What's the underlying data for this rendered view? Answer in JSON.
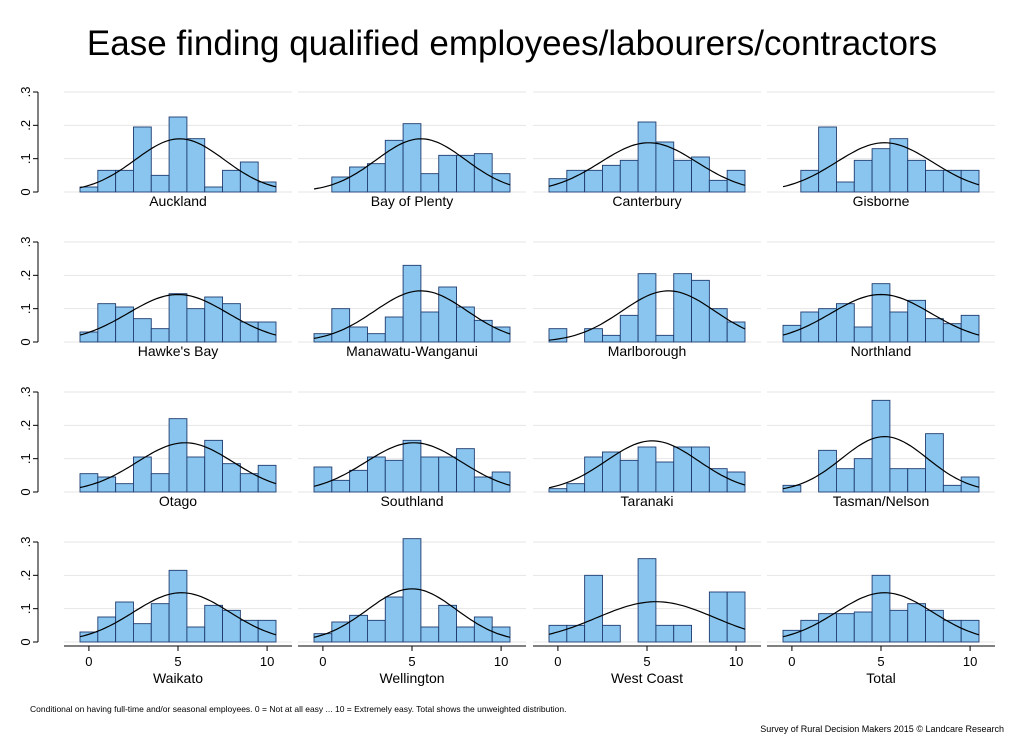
{
  "title": "Ease finding qualified employees/labourers/contractors",
  "note": "Conditional on having full-time and/or seasonal employees. 0 = Not at all easy ... 10 = Extremely easy. Total shows the unweighted distribution.",
  "credit": "Survey of Rural Decision Makers 2015 © Landcare Research",
  "chart_data": {
    "type": "bar",
    "subtype": "histogram-small-multiples",
    "grid": "horizontal",
    "y_ticks": [
      "0",
      ".1",
      ".2",
      ".3"
    ],
    "y_tick_values": [
      0,
      0.1,
      0.2,
      0.3
    ],
    "x_ticks": [
      "0",
      "5",
      "10"
    ],
    "x_tick_values": [
      0,
      5,
      10
    ],
    "ylim": [
      0,
      0.3
    ],
    "xlim": [
      -0.5,
      10.5
    ],
    "bins": [
      0,
      1,
      2,
      3,
      4,
      5,
      6,
      7,
      8,
      9,
      10
    ],
    "colors": {
      "bar_fill": "#89c5ee",
      "bar_edge": "#1f3c70",
      "curve": "#000000",
      "grid": "#e6e6e6"
    },
    "panels": [
      {
        "name": "Auckland",
        "values": [
          0.015,
          0.065,
          0.065,
          0.195,
          0.05,
          0.225,
          0.16,
          0.015,
          0.065,
          0.09,
          0.03
        ],
        "mean": 5.1,
        "sd": 2.5
      },
      {
        "name": "Bay of Plenty",
        "values": [
          0.0,
          0.045,
          0.075,
          0.085,
          0.155,
          0.205,
          0.055,
          0.11,
          0.11,
          0.115,
          0.055
        ],
        "mean": 5.5,
        "sd": 2.5
      },
      {
        "name": "Canterbury",
        "values": [
          0.04,
          0.065,
          0.065,
          0.08,
          0.095,
          0.21,
          0.15,
          0.095,
          0.105,
          0.035,
          0.065
        ],
        "mean": 5.1,
        "sd": 2.7
      },
      {
        "name": "Gisborne",
        "values": [
          0.0,
          0.065,
          0.195,
          0.03,
          0.095,
          0.13,
          0.16,
          0.095,
          0.065,
          0.065,
          0.065
        ],
        "mean": 5.2,
        "sd": 2.7
      },
      {
        "name": "Hawke's Bay",
        "values": [
          0.03,
          0.115,
          0.105,
          0.07,
          0.04,
          0.145,
          0.1,
          0.135,
          0.115,
          0.06,
          0.06
        ],
        "mean": 5.0,
        "sd": 2.8
      },
      {
        "name": "Manawatu-Wanganui",
        "values": [
          0.025,
          0.1,
          0.045,
          0.025,
          0.075,
          0.23,
          0.09,
          0.165,
          0.105,
          0.065,
          0.045
        ],
        "mean": 5.5,
        "sd": 2.6
      },
      {
        "name": "Marlborough",
        "values": [
          0.04,
          0.0,
          0.04,
          0.02,
          0.08,
          0.205,
          0.02,
          0.205,
          0.185,
          0.1,
          0.06
        ],
        "mean": 6.2,
        "sd": 2.6
      },
      {
        "name": "Northland",
        "values": [
          0.05,
          0.09,
          0.1,
          0.115,
          0.045,
          0.175,
          0.09,
          0.125,
          0.07,
          0.055,
          0.08
        ],
        "mean": 5.0,
        "sd": 2.8
      },
      {
        "name": "Otago",
        "values": [
          0.055,
          0.045,
          0.025,
          0.105,
          0.055,
          0.22,
          0.105,
          0.155,
          0.085,
          0.055,
          0.08
        ],
        "mean": 5.4,
        "sd": 2.7
      },
      {
        "name": "Southland",
        "values": [
          0.075,
          0.035,
          0.065,
          0.105,
          0.095,
          0.155,
          0.105,
          0.105,
          0.13,
          0.045,
          0.06
        ],
        "mean": 5.1,
        "sd": 2.7
      },
      {
        "name": "Taranaki",
        "values": [
          0.01,
          0.025,
          0.105,
          0.12,
          0.095,
          0.135,
          0.09,
          0.135,
          0.135,
          0.07,
          0.06
        ],
        "mean": 5.3,
        "sd": 2.6
      },
      {
        "name": "Tasman/Nelson",
        "values": [
          0.02,
          0.0,
          0.125,
          0.07,
          0.1,
          0.275,
          0.07,
          0.07,
          0.175,
          0.02,
          0.045
        ],
        "mean": 5.2,
        "sd": 2.4
      },
      {
        "name": "Waikato",
        "values": [
          0.03,
          0.075,
          0.12,
          0.055,
          0.115,
          0.215,
          0.045,
          0.11,
          0.095,
          0.065,
          0.065
        ],
        "mean": 5.2,
        "sd": 2.7
      },
      {
        "name": "Wellington",
        "values": [
          0.025,
          0.06,
          0.08,
          0.065,
          0.135,
          0.31,
          0.045,
          0.11,
          0.045,
          0.075,
          0.045
        ],
        "mean": 5.0,
        "sd": 2.5
      },
      {
        "name": "West Coast",
        "values": [
          0.05,
          0.05,
          0.2,
          0.05,
          0.0,
          0.25,
          0.05,
          0.05,
          0.0,
          0.15,
          0.15
        ],
        "mean": 5.5,
        "sd": 3.3
      },
      {
        "name": "Total",
        "values": [
          0.035,
          0.065,
          0.085,
          0.085,
          0.09,
          0.2,
          0.095,
          0.115,
          0.095,
          0.065,
          0.065
        ],
        "mean": 5.2,
        "sd": 2.7
      }
    ]
  }
}
